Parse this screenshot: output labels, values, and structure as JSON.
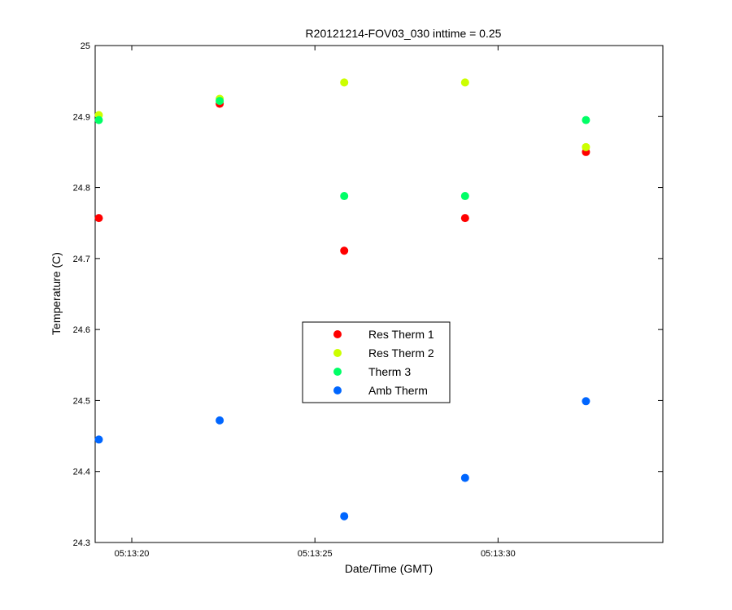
{
  "chart_data": {
    "type": "scatter",
    "title": "R20121214-FOV03_030 inttime = 0.25",
    "xlabel": "Date/Time (GMT)",
    "ylabel": "Temperature (C)",
    "x_unit": "time of day (GMT)",
    "xlim": [
      "05:13:19",
      "05:13:34.5"
    ],
    "ylim": [
      24.3,
      25.0
    ],
    "x_ticks": [
      "05:13:20",
      "05:13:25",
      "05:13:30"
    ],
    "y_ticks": [
      "24.3",
      "24.4",
      "24.5",
      "24.6",
      "24.7",
      "24.8",
      "24.9",
      "25"
    ],
    "grid": false,
    "legend_position": "center",
    "x": [
      "05:13:19.1",
      "05:13:22.4",
      "05:13:25.8",
      "05:13:29.1",
      "05:13:32.4"
    ],
    "series": [
      {
        "name": "Res Therm 1",
        "color": "#ff0000",
        "values": [
          24.757,
          24.918,
          24.711,
          24.757,
          24.85
        ]
      },
      {
        "name": "Res Therm 2",
        "color": "#ccff00",
        "values": [
          24.902,
          24.925,
          24.948,
          24.948,
          24.857
        ]
      },
      {
        "name": "Therm 3",
        "color": "#00ff66",
        "values": [
          24.895,
          24.922,
          24.788,
          24.788,
          24.895
        ]
      },
      {
        "name": "Amb Therm",
        "color": "#0066ff",
        "values": [
          24.445,
          24.472,
          24.337,
          24.391,
          24.499
        ]
      }
    ]
  }
}
